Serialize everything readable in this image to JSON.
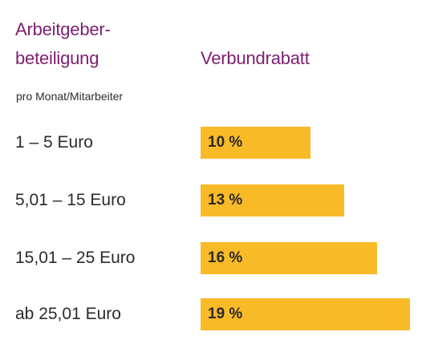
{
  "header": {
    "left_title": [
      "Arbeitgeber-",
      "beteiligung"
    ],
    "right_title": "Verbundrabatt",
    "subtitle": "pro Monat/Mitarbeiter"
  },
  "colors": {
    "title": "#7d1f6f",
    "bar": "#f9ba27",
    "text": "#2b2b2b"
  },
  "chart_data": {
    "type": "bar",
    "orientation": "horizontal",
    "categories": [
      "1 – 5 Euro",
      "5,01 – 15 Euro",
      "15,01 – 25 Euro",
      "ab 25,01 Euro"
    ],
    "values": [
      10,
      13,
      16,
      19
    ],
    "value_labels": [
      "10 %",
      "13 %",
      "16 %",
      "19 %"
    ],
    "xlim": [
      0,
      19
    ],
    "grid": false
  }
}
